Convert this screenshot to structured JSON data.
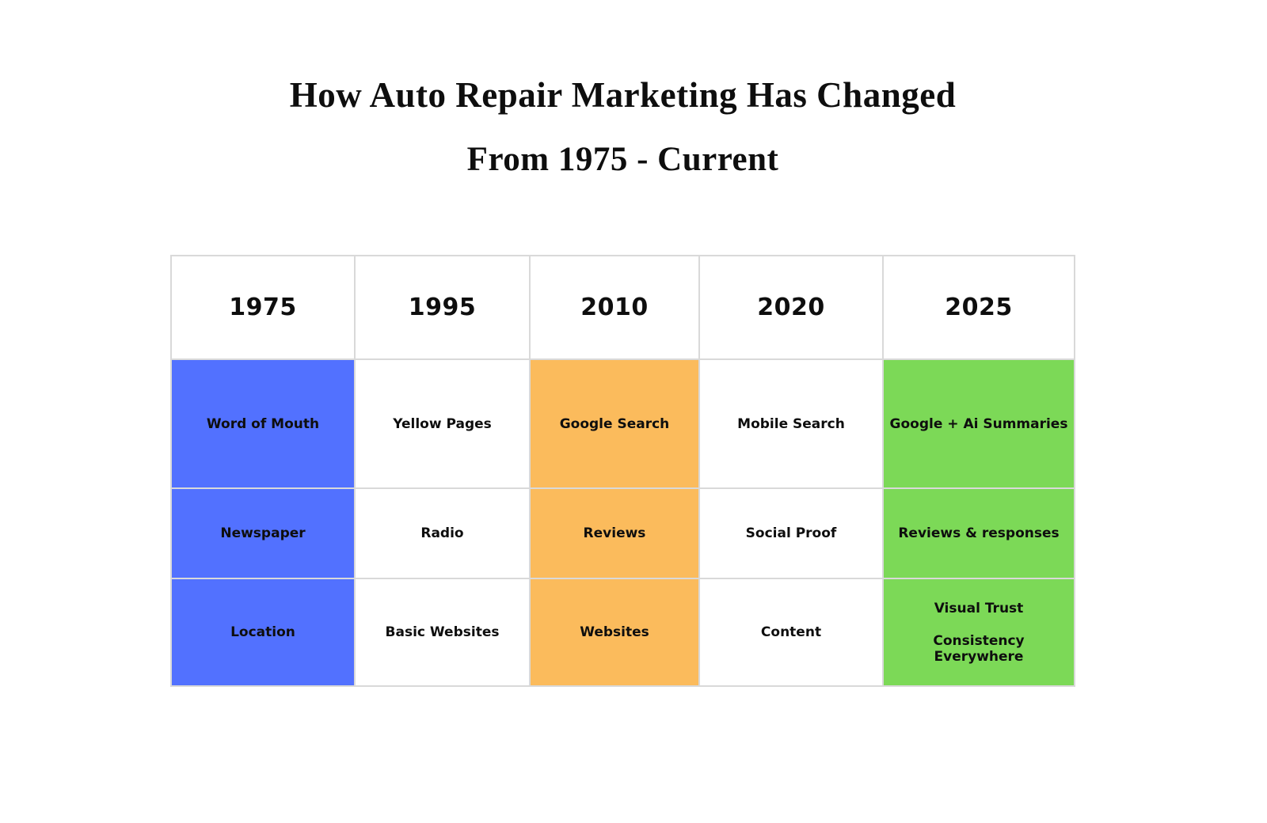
{
  "title": {
    "line1": "How Auto Repair Marketing Has Changed",
    "line2": "From 1975 - Current"
  },
  "colors": {
    "page-bg": "#ffffff",
    "grid-border": "#d9d9d9",
    "text": "#0e0e0e",
    "col-1975": "#5271ff",
    "col-1995": "#ffffff",
    "col-2010": "#fbbb5c",
    "col-2020": "#ffffff",
    "col-2025": "#7cd957"
  },
  "table": {
    "headers": [
      {
        "label": "1975"
      },
      {
        "label": "1995"
      },
      {
        "label": "2010"
      },
      {
        "label": "2020"
      },
      {
        "label": "2025"
      }
    ],
    "rows": [
      {
        "cells": [
          {
            "text": "Word of Mouth"
          },
          {
            "text": "Yellow Pages"
          },
          {
            "text": "Google Search"
          },
          {
            "text": "Mobile Search"
          },
          {
            "text": "Google + Ai Summaries"
          }
        ]
      },
      {
        "cells": [
          {
            "text": "Newspaper"
          },
          {
            "text": "Radio"
          },
          {
            "text": "Reviews"
          },
          {
            "text": "Social Proof"
          },
          {
            "text": "Reviews & responses"
          }
        ]
      },
      {
        "cells": [
          {
            "text": "Location"
          },
          {
            "text": "Basic Websites"
          },
          {
            "text": "Websites"
          },
          {
            "text": "Content"
          },
          {
            "text": "Visual Trust",
            "text2": "Consistency Everywhere"
          }
        ]
      }
    ]
  },
  "chart_data": {
    "type": "table",
    "title": "How Auto Repair Marketing Has Changed From 1975 - Current",
    "columns": [
      "1975",
      "1995",
      "2010",
      "2020",
      "2025"
    ],
    "rows": [
      [
        "Word of Mouth",
        "Yellow Pages",
        "Google Search",
        "Mobile Search",
        "Google + Ai Summaries"
      ],
      [
        "Newspaper",
        "Radio",
        "Reviews",
        "Social Proof",
        "Reviews & responses"
      ],
      [
        "Location",
        "Basic Websites",
        "Websites",
        "Content",
        "Visual Trust Consistency Everywhere"
      ]
    ],
    "column_highlight_colors": [
      "#5271ff",
      "#ffffff",
      "#fbbb5c",
      "#ffffff",
      "#7cd957"
    ],
    "layout": {
      "grid": true,
      "header_row": true
    }
  }
}
